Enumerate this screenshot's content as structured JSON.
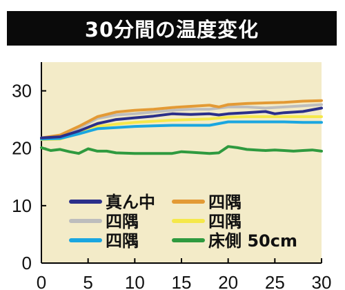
{
  "chart_data": {
    "type": "line",
    "title": "30分間の温度変化",
    "xlabel": "",
    "ylabel": "",
    "xlim": [
      0,
      30
    ],
    "ylim": [
      0,
      35
    ],
    "x_ticks": [
      0,
      5,
      10,
      15,
      20,
      25,
      30
    ],
    "y_ticks": [
      0,
      10,
      20,
      30
    ],
    "grid": false,
    "legend_position": "bottom-left",
    "background_color": "#f3ebc8",
    "series": [
      {
        "name": "真ん中",
        "color": "#2b2f8a",
        "x": [
          0,
          2,
          4,
          6,
          8,
          10,
          12,
          14,
          16,
          18,
          19,
          20,
          22,
          24,
          25,
          26,
          28,
          30
        ],
        "y": [
          21.8,
          22.0,
          23.0,
          24.3,
          25.0,
          25.3,
          25.6,
          26.0,
          25.9,
          26.0,
          25.8,
          26.0,
          26.2,
          26.4,
          26.0,
          26.2,
          26.4,
          27.0
        ]
      },
      {
        "name": "四隅",
        "color": "#bdbdbd",
        "x": [
          0,
          2,
          4,
          6,
          8,
          10,
          12,
          14,
          16,
          18,
          20,
          22,
          24,
          26,
          28,
          30
        ],
        "y": [
          21.8,
          22.2,
          23.5,
          25.2,
          25.8,
          26.0,
          26.3,
          26.6,
          26.8,
          26.8,
          27.2,
          27.2,
          27.0,
          27.2,
          27.4,
          27.6
        ]
      },
      {
        "name": "四隅",
        "color": "#1aa6e0",
        "x": [
          0,
          2,
          4,
          6,
          8,
          10,
          12,
          14,
          16,
          18,
          20,
          22,
          24,
          26,
          28,
          30
        ],
        "y": [
          21.6,
          21.7,
          22.5,
          23.4,
          23.6,
          23.8,
          23.9,
          24.0,
          24.0,
          24.0,
          24.6,
          24.6,
          24.6,
          24.6,
          24.5,
          24.5
        ]
      },
      {
        "name": "四隅",
        "color": "#e39a35",
        "x": [
          0,
          2,
          4,
          6,
          8,
          10,
          12,
          14,
          16,
          18,
          19,
          20,
          22,
          24,
          26,
          28,
          30
        ],
        "y": [
          21.8,
          22.3,
          23.8,
          25.5,
          26.3,
          26.6,
          26.8,
          27.1,
          27.3,
          27.5,
          27.2,
          27.6,
          27.8,
          27.9,
          28.0,
          28.2,
          28.3
        ]
      },
      {
        "name": "四隅",
        "color": "#f5e84a",
        "x": [
          0,
          2,
          4,
          6,
          8,
          10,
          12,
          14,
          16,
          18,
          20,
          22,
          24,
          26,
          28,
          30
        ],
        "y": [
          21.5,
          21.6,
          22.6,
          23.8,
          24.2,
          24.5,
          24.7,
          24.9,
          25.0,
          25.1,
          25.4,
          25.5,
          25.5,
          25.5,
          25.5,
          25.5
        ]
      },
      {
        "name": "床側 50cm",
        "color": "#2f9a3f",
        "x": [
          0,
          1,
          2,
          3,
          4,
          5,
          6,
          7,
          8,
          10,
          12,
          14,
          15,
          16,
          17,
          18,
          19,
          20,
          21,
          22,
          23,
          24,
          25,
          26,
          27,
          28,
          29,
          30
        ],
        "y": [
          20.1,
          19.6,
          19.8,
          19.4,
          19.1,
          19.9,
          19.5,
          19.5,
          19.2,
          19.1,
          19.1,
          19.1,
          19.4,
          19.3,
          19.2,
          19.1,
          19.2,
          20.3,
          20.1,
          19.8,
          19.7,
          19.6,
          19.7,
          19.6,
          19.5,
          19.6,
          19.7,
          19.5
        ]
      }
    ]
  }
}
